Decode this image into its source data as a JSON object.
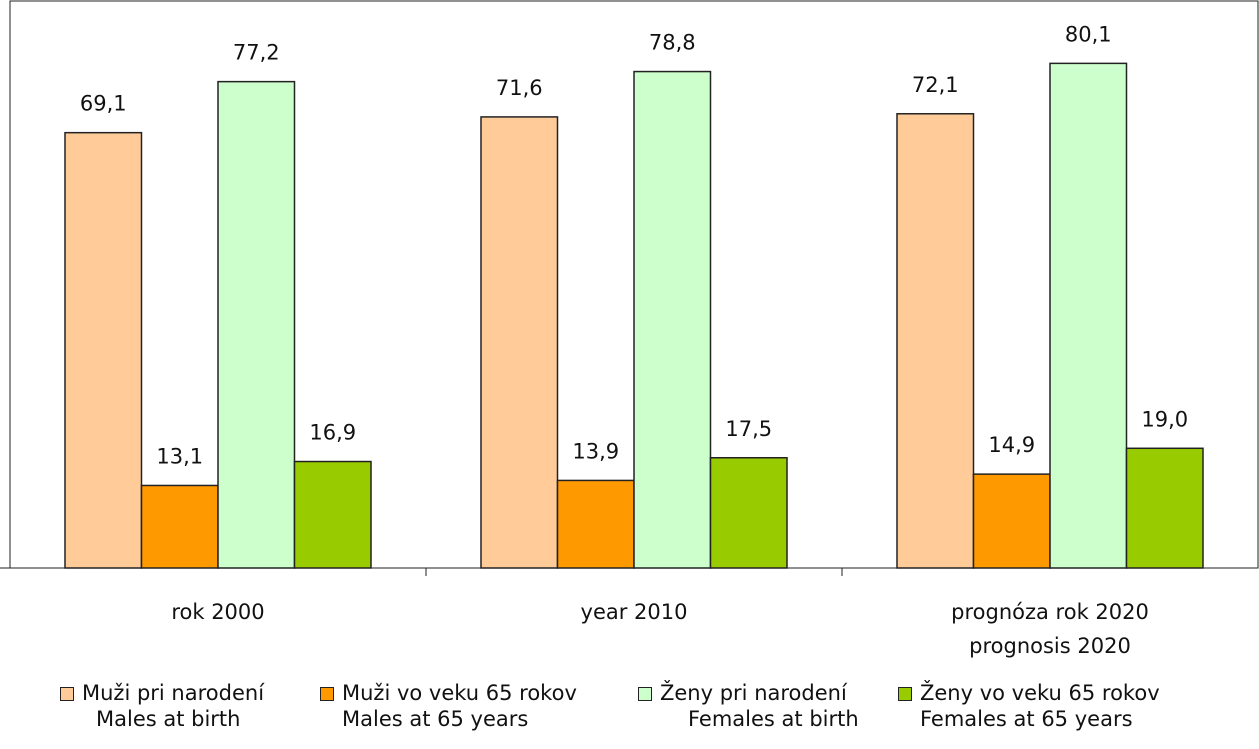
{
  "chart_data": {
    "type": "bar",
    "categories": [
      [
        "rok 2000"
      ],
      [
        "year 2010"
      ],
      [
        "prognóza rok 2020",
        "prognosis 2020"
      ]
    ],
    "series": [
      {
        "name": "Muži pri narodení",
        "name_en": "Males at birth",
        "color": "#FFCC99",
        "values": [
          69.1,
          71.6,
          72.1
        ],
        "labels": [
          "69,1",
          "71,6",
          "72,1"
        ]
      },
      {
        "name": "Muži vo veku 65 rokov",
        "name_en": "Males at 65 years",
        "color": "#FF9900",
        "values": [
          13.1,
          13.9,
          14.9
        ],
        "labels": [
          "13,1",
          "13,9",
          "14,9"
        ]
      },
      {
        "name": "Ženy pri narodení",
        "name_en": "Females at birth",
        "color": "#CCFFCC",
        "values": [
          77.2,
          78.8,
          80.1
        ],
        "labels": [
          "77,2",
          "78,8",
          "80,1"
        ]
      },
      {
        "name": "Ženy vo veku 65 rokov",
        "name_en": "Females at 65 years",
        "color": "#99CC00",
        "values": [
          16.9,
          17.5,
          19.0
        ],
        "labels": [
          "16,9",
          "17,5",
          "19,0"
        ]
      }
    ],
    "ylim": [
      0,
      90
    ],
    "grid": false,
    "legend_position": "bottom"
  }
}
